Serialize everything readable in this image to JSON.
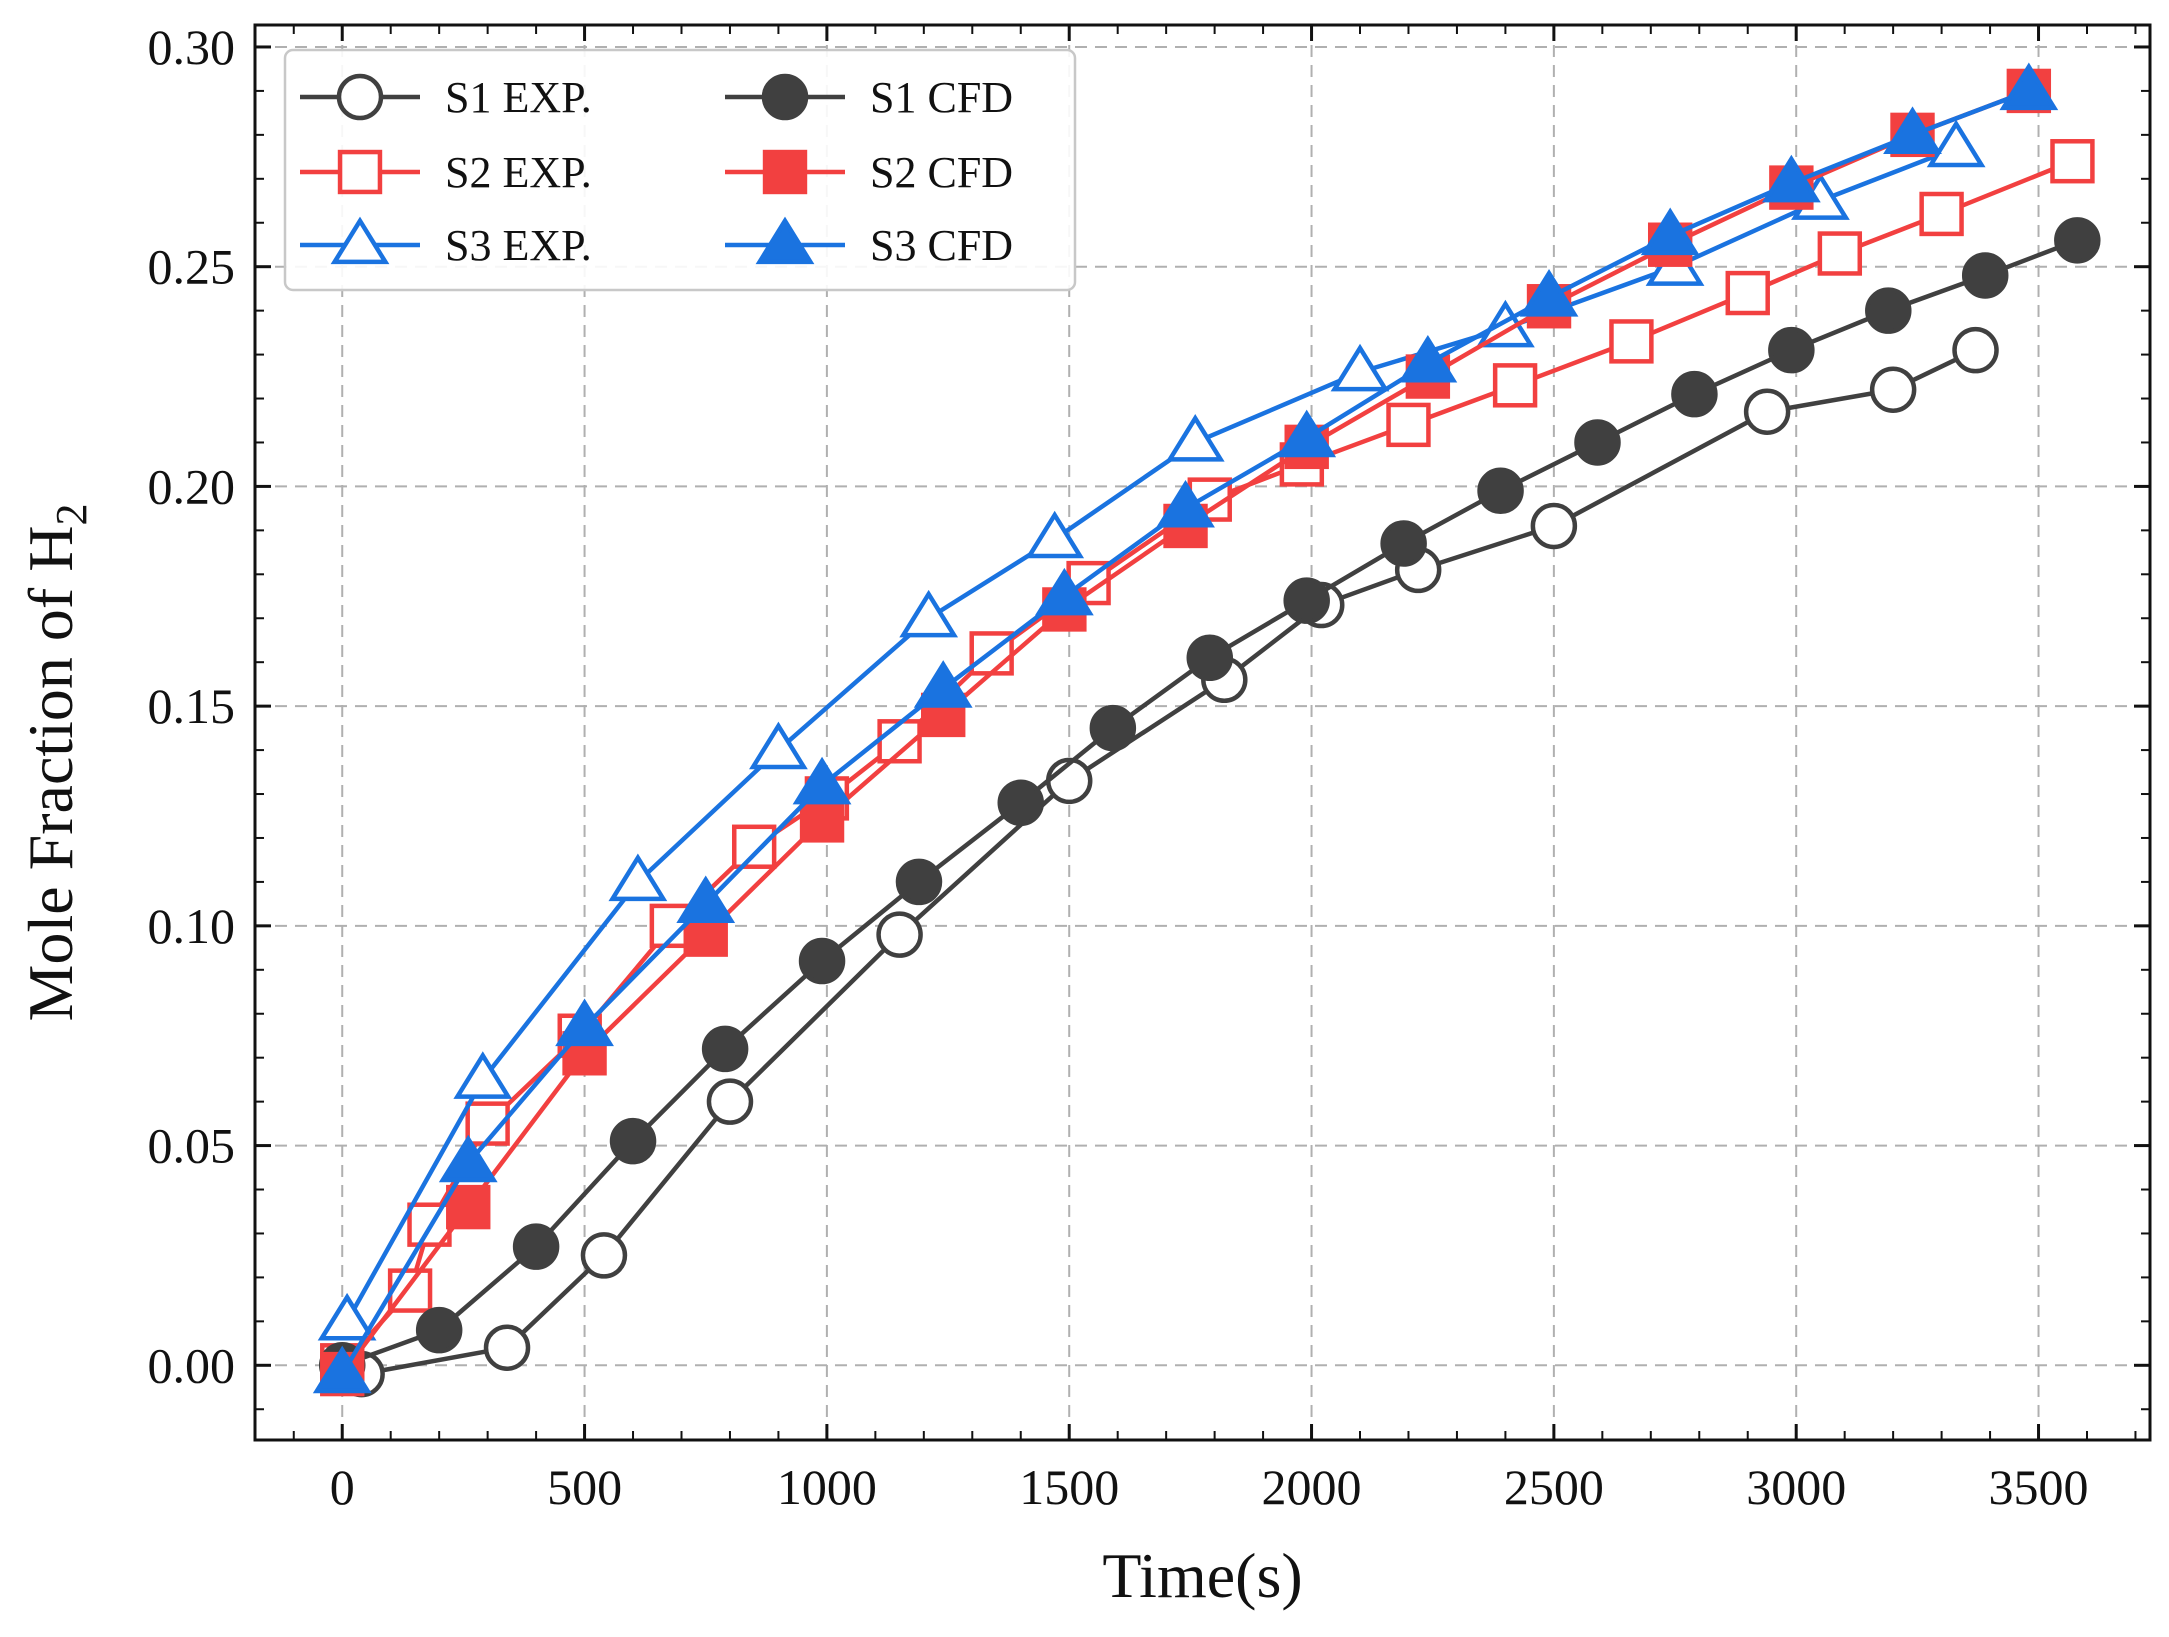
{
  "chart_data": {
    "type": "line",
    "title": "",
    "xlabel": "Time(s)",
    "ylabel": "Mole Fraction of H",
    "ylabel_subscript": "2",
    "xlim": [
      -180,
      3730
    ],
    "ylim": [
      -0.017,
      0.305
    ],
    "xticks": [
      0,
      500,
      1000,
      1500,
      2000,
      2500,
      3000,
      3500
    ],
    "xtick_labels": [
      "0",
      "500",
      "1000",
      "1500",
      "2000",
      "2500",
      "3000",
      "3500"
    ],
    "yticks": [
      0.0,
      0.05,
      0.1,
      0.15,
      0.2,
      0.25,
      0.3
    ],
    "ytick_labels": [
      "0.00",
      "0.05",
      "0.10",
      "0.15",
      "0.20",
      "0.25",
      "0.30"
    ],
    "grid": true,
    "legend_position": "top-left",
    "series": [
      {
        "name": "S1 EXP.",
        "color": "#404040",
        "marker": "circle",
        "filled": false,
        "x": [
          40,
          340,
          540,
          800,
          1150,
          1500,
          1820,
          2020,
          2220,
          2500,
          2940,
          3200,
          3370
        ],
        "y": [
          -0.002,
          0.004,
          0.025,
          0.06,
          0.098,
          0.133,
          0.156,
          0.173,
          0.181,
          0.191,
          0.217,
          0.222,
          0.231
        ]
      },
      {
        "name": "S2 EXP.",
        "color": "#f24040",
        "marker": "square",
        "filled": false,
        "x": [
          0,
          140,
          180,
          300,
          490,
          680,
          850,
          1000,
          1150,
          1340,
          1540,
          1790,
          1980,
          2200,
          2420,
          2660,
          2900,
          3090,
          3300,
          3570
        ],
        "y": [
          0.0,
          0.017,
          0.032,
          0.055,
          0.075,
          0.1,
          0.118,
          0.129,
          0.142,
          0.162,
          0.178,
          0.197,
          0.205,
          0.214,
          0.223,
          0.233,
          0.244,
          0.253,
          0.262,
          0.274
        ]
      },
      {
        "name": "S3 EXP.",
        "color": "#1a73e0",
        "marker": "triangle",
        "filled": false,
        "x": [
          10,
          290,
          610,
          900,
          1210,
          1470,
          1760,
          2100,
          2400,
          2750,
          3050,
          3330
        ],
        "y": [
          0.01,
          0.065,
          0.11,
          0.14,
          0.17,
          0.188,
          0.21,
          0.226,
          0.236,
          0.25,
          0.265,
          0.277
        ]
      },
      {
        "name": "S1 CFD",
        "color": "#404040",
        "marker": "circle",
        "filled": true,
        "x": [
          0,
          200,
          400,
          600,
          790,
          990,
          1190,
          1400,
          1590,
          1790,
          1990,
          2190,
          2390,
          2590,
          2790,
          2990,
          3190,
          3390,
          3580
        ],
        "y": [
          0.0,
          0.008,
          0.027,
          0.051,
          0.072,
          0.092,
          0.11,
          0.128,
          0.145,
          0.161,
          0.174,
          0.187,
          0.199,
          0.21,
          0.221,
          0.231,
          0.24,
          0.248,
          0.256
        ]
      },
      {
        "name": "S2 CFD",
        "color": "#f24040",
        "marker": "square",
        "filled": true,
        "x": [
          0,
          260,
          500,
          750,
          990,
          1240,
          1490,
          1740,
          1990,
          2240,
          2490,
          2740,
          2990,
          3240,
          3480
        ],
        "y": [
          -0.002,
          0.036,
          0.071,
          0.098,
          0.124,
          0.148,
          0.172,
          0.191,
          0.209,
          0.225,
          0.241,
          0.255,
          0.268,
          0.28,
          0.29
        ]
      },
      {
        "name": "S3 CFD",
        "color": "#1a73e0",
        "marker": "triangle",
        "filled": true,
        "x": [
          0,
          260,
          500,
          750,
          990,
          1240,
          1490,
          1740,
          1990,
          2240,
          2490,
          2740,
          2990,
          3240,
          3480
        ],
        "y": [
          -0.002,
          0.046,
          0.077,
          0.105,
          0.132,
          0.154,
          0.175,
          0.195,
          0.211,
          0.228,
          0.243,
          0.257,
          0.269,
          0.28,
          0.29
        ]
      }
    ]
  }
}
